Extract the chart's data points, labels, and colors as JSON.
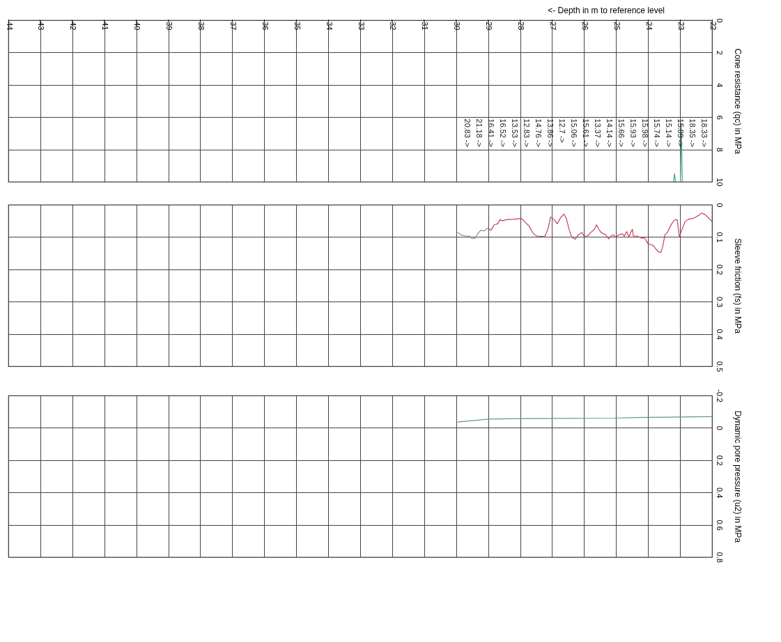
{
  "chart_data": [
    {
      "type": "line",
      "xlabel": "<- Depth in m to reference level",
      "ylabel": "Cone resistance (qc) in MPa",
      "xlim": [
        -44,
        -22
      ],
      "xticks": [
        -44,
        -43,
        -42,
        -41,
        -40,
        -39,
        -38,
        -37,
        -36,
        -35,
        -34,
        -33,
        -32,
        -31,
        -30,
        -29,
        -28,
        -27,
        -26,
        -25,
        -24,
        -23,
        -22
      ],
      "ylim": [
        10,
        0
      ],
      "yticks": [
        0,
        2,
        4,
        6,
        8,
        10
      ],
      "grid": true,
      "legend": false,
      "series": [
        {
          "color": "#4a9a86",
          "x": [
            -22.93,
            -22.96,
            -22.99,
            -23.05,
            -23.14,
            -23.17,
            -23.2
          ],
          "values": [
            10,
            6.4,
            10,
            null,
            10,
            9.5,
            10
          ]
        }
      ],
      "annotations": [
        "18.33 ->",
        "18.35 ->",
        "15.09 ->",
        "15.14 ->",
        "15.74 ->",
        "15.98 ->",
        "15.93 ->",
        "15.66 ->",
        "14.14 ->",
        "13.37 ->",
        "15.61 ->",
        "15.06 ->",
        "12.7 ->",
        "13.86 ->",
        "14.76 ->",
        "12.83 ->",
        "13.53 ->",
        "16.52 ->",
        "16.41 ->",
        "21.18 ->",
        "20.83 ->"
      ]
    },
    {
      "type": "line",
      "ylabel": "Sleeve friction (fs) in MPa",
      "xlim": [
        -44,
        -22
      ],
      "xticks": [
        -44,
        -43,
        -42,
        -41,
        -40,
        -39,
        -38,
        -37,
        -36,
        -35,
        -34,
        -33,
        -32,
        -31,
        -30,
        -29,
        -28,
        -27,
        -26,
        -25,
        -24,
        -23,
        -22
      ],
      "ylim": [
        0.5,
        0
      ],
      "yticks": [
        0,
        0.1,
        0.2,
        0.3,
        0.4,
        0.5
      ],
      "grid": true,
      "legend": false,
      "tick_labels": "y",
      "series": [
        {
          "color": "#8a8a8a",
          "x": [
            -29.96,
            -29.86,
            -29.72,
            -29.58,
            -29.51,
            -29.4,
            -29.33,
            -29.23,
            -29.12,
            -29.02
          ],
          "values": [
            0.085,
            0.093,
            0.097,
            0.097,
            0.105,
            0.103,
            0.09,
            0.079,
            0.081,
            0.072
          ]
        },
        {
          "color": "#c0405a",
          "x": [
            -29.02,
            -28.91,
            -28.81,
            -28.7,
            -28.63,
            -28.56,
            -28.42,
            -28.21,
            -27.96,
            -27.86,
            -27.72,
            -27.61,
            -27.54,
            -27.47,
            -27.23,
            -27.12,
            -27.05,
            -26.95,
            -26.84,
            -26.74,
            -26.63,
            -26.56,
            -26.46,
            -26.39,
            -26.28,
            -26.18,
            -26.07,
            -26.0,
            -25.89,
            -25.79,
            -25.68,
            -25.61,
            -25.54,
            -25.47,
            -25.33,
            -25.23,
            -25.16,
            -25.09,
            -25.02,
            -24.91,
            -24.81,
            -24.74,
            -24.67,
            -24.6,
            -24.53,
            -24.49,
            -24.46,
            -24.35,
            -24.21,
            -24.11,
            -24.0,
            -23.89,
            -23.82,
            -23.75,
            -23.65,
            -23.59,
            -23.54,
            -23.47,
            -23.4,
            -23.3,
            -23.19,
            -23.09,
            -23.02,
            -22.95,
            -22.84,
            -22.74,
            -22.6,
            -22.49,
            -22.39,
            -22.32,
            -22.21,
            -22.11,
            -22.0
          ],
          "values": [
            0.072,
            0.079,
            0.062,
            0.059,
            0.046,
            0.05,
            0.046,
            0.045,
            0.043,
            0.052,
            0.066,
            0.086,
            0.093,
            0.097,
            0.099,
            0.072,
            0.038,
            0.045,
            0.059,
            0.041,
            0.029,
            0.041,
            0.079,
            0.1,
            0.107,
            0.093,
            0.086,
            0.097,
            0.097,
            0.086,
            0.076,
            0.062,
            0.076,
            0.086,
            0.093,
            0.106,
            0.097,
            0.093,
            0.1,
            0.093,
            0.09,
            0.097,
            0.083,
            0.1,
            0.083,
            0.076,
            0.097,
            0.097,
            0.103,
            0.103,
            0.121,
            0.124,
            0.128,
            0.138,
            0.147,
            0.147,
            0.128,
            0.093,
            0.086,
            0.066,
            0.048,
            0.046,
            0.1,
            0.079,
            0.052,
            0.045,
            0.043,
            0.037,
            0.031,
            0.026,
            0.031,
            0.041,
            0.052
          ]
        }
      ]
    },
    {
      "type": "line",
      "ylabel": "Dynamic pore pressure (u2) in MPa",
      "xlim": [
        -44,
        -22
      ],
      "xticks": [
        -44,
        -43,
        -42,
        -41,
        -40,
        -39,
        -38,
        -37,
        -36,
        -35,
        -34,
        -33,
        -32,
        -31,
        -30,
        -29,
        -28,
        -27,
        -26,
        -25,
        -24,
        -23,
        -22
      ],
      "ylim": [
        0.8,
        -0.2
      ],
      "yticks": [
        -0.2,
        0,
        0.2,
        0.4,
        0.6,
        0.8
      ],
      "grid": true,
      "legend": false,
      "tick_labels": "y",
      "series": [
        {
          "color": "#5a9a8a",
          "x": [
            -29.96,
            -28.98,
            -28.03,
            -25.07,
            -24.37,
            -22.0
          ],
          "values": [
            -0.036,
            -0.054,
            -0.057,
            -0.06,
            -0.064,
            -0.069
          ]
        }
      ]
    }
  ]
}
